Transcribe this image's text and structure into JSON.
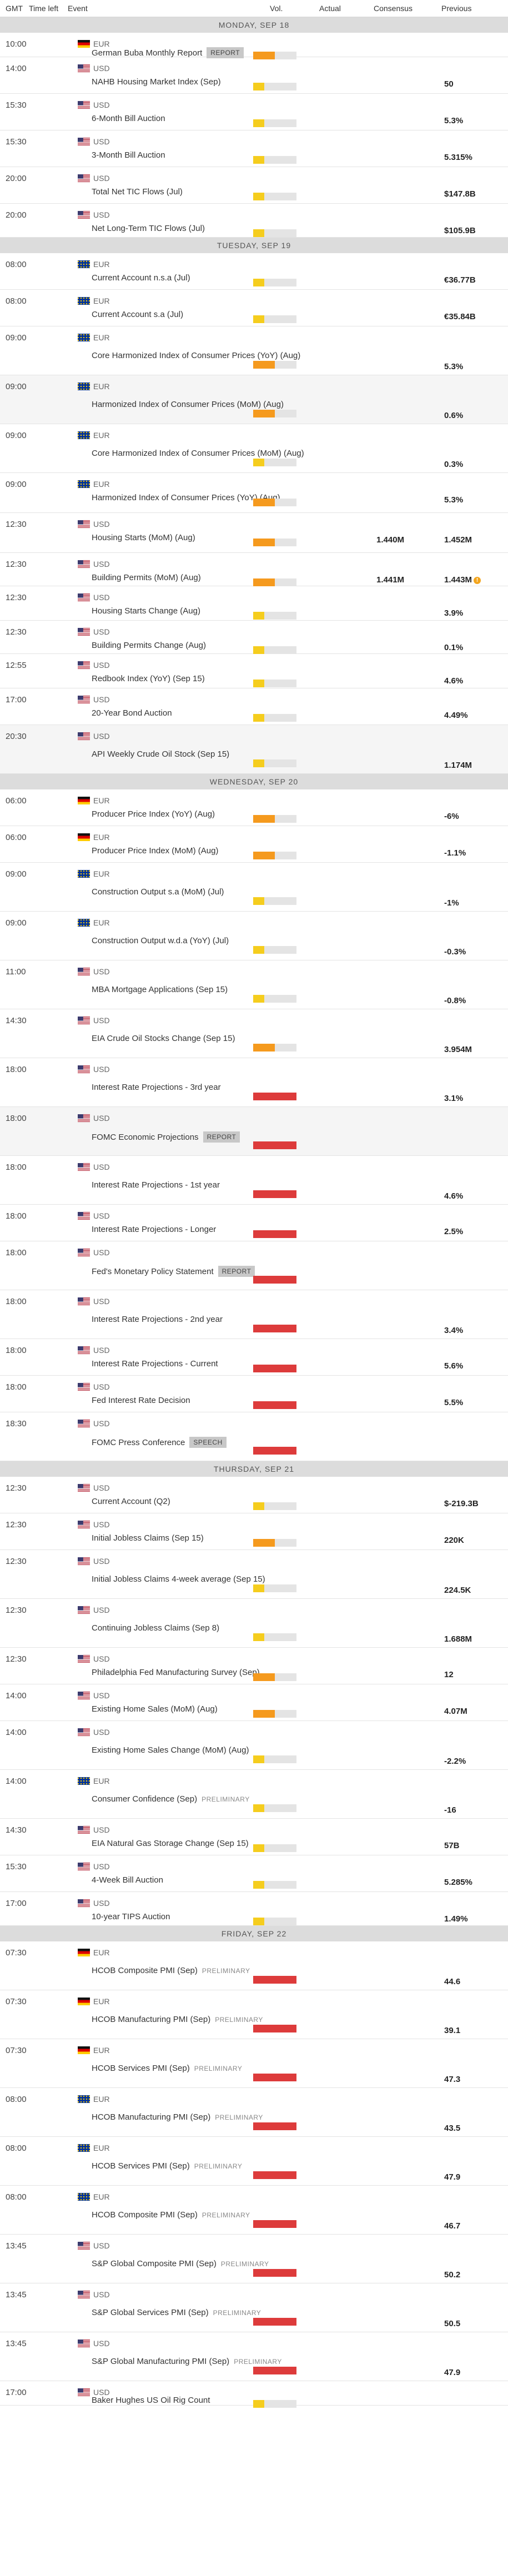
{
  "headers": {
    "gmt": "GMT",
    "time_left": "Time left",
    "event": "Event",
    "vol": "Vol.",
    "actual": "Actual",
    "consensus": "Consensus",
    "previous": "Previous"
  },
  "colors": {
    "low": "#f5cd1e",
    "medium": "#f59a1e",
    "high": "#dd3b3b",
    "day_band": "#dcdcdc"
  },
  "days": [
    {
      "label": "MONDAY, SEP 18",
      "events": [
        {
          "time": "10:00",
          "country": "de",
          "cur": "EUR",
          "name": "German Buba Monthly Report",
          "tag": "REPORT",
          "vol": "medium",
          "prev": "",
          "h": 44
        },
        {
          "time": "14:00",
          "country": "us",
          "cur": "USD",
          "name": "NAHB Housing Market Index (Sep)",
          "vol": "low",
          "prev": "50",
          "h": 66
        },
        {
          "time": "15:30",
          "country": "us",
          "cur": "USD",
          "name": "6-Month Bill Auction",
          "vol": "low",
          "prev": "5.3%",
          "h": 66
        },
        {
          "time": "15:30",
          "country": "us",
          "cur": "USD",
          "name": "3-Month Bill Auction",
          "vol": "low",
          "prev": "5.315%",
          "h": 66
        },
        {
          "time": "20:00",
          "country": "us",
          "cur": "USD",
          "name": "Total Net TIC Flows (Jul)",
          "vol": "low",
          "prev": "$147.8B",
          "h": 66
        },
        {
          "time": "20:00",
          "country": "us",
          "cur": "USD",
          "name": "Net Long-Term TIC Flows (Jul)",
          "vol": "low",
          "prev": "$105.9B",
          "h": 61
        }
      ]
    },
    {
      "label": "TUESDAY, SEP 19",
      "events": [
        {
          "time": "08:00",
          "country": "eu",
          "cur": "EUR",
          "name": "Current Account n.s.a (Jul)",
          "vol": "low",
          "prev": "€36.77B",
          "h": 66
        },
        {
          "time": "08:00",
          "country": "eu",
          "cur": "EUR",
          "name": "Current Account s.a (Jul)",
          "vol": "low",
          "prev": "€35.84B",
          "h": 66
        },
        {
          "time": "09:00",
          "country": "eu",
          "cur": "EUR",
          "name": "Core Harmonized Index of Consumer Prices (YoY) (Aug)",
          "vol": "medium",
          "prev": "5.3%",
          "h": 88
        },
        {
          "time": "09:00",
          "country": "eu",
          "cur": "EUR",
          "name": "Harmonized Index of Consumer Prices (MoM) (Aug)",
          "vol": "medium",
          "prev": "0.6%",
          "h": 88,
          "alt": true
        },
        {
          "time": "09:00",
          "country": "eu",
          "cur": "EUR",
          "name": "Core Harmonized Index of Consumer Prices (MoM) (Aug)",
          "vol": "low",
          "prev": "0.3%",
          "h": 88
        },
        {
          "time": "09:00",
          "country": "eu",
          "cur": "EUR",
          "name": "Harmonized Index of Consumer Prices (YoY) (Aug)",
          "vol": "medium",
          "prev": "5.3%",
          "h": 72
        },
        {
          "time": "12:30",
          "country": "us",
          "cur": "USD",
          "name": "Housing Starts (MoM) (Aug)",
          "vol": "medium",
          "cons": "1.440M",
          "prev": "1.452M",
          "h": 72
        },
        {
          "time": "12:30",
          "country": "us",
          "cur": "USD",
          "name": "Building Permits (MoM) (Aug)",
          "vol": "medium",
          "cons": "1.441M",
          "prev": "1.443M",
          "warn": true,
          "h": 60
        },
        {
          "time": "12:30",
          "country": "us",
          "cur": "USD",
          "name": "Housing Starts Change (Aug)",
          "vol": "low",
          "prev": "3.9%",
          "h": 62
        },
        {
          "time": "12:30",
          "country": "us",
          "cur": "USD",
          "name": "Building Permits Change (Aug)",
          "vol": "low",
          "prev": "0.1%",
          "h": 60
        },
        {
          "time": "12:55",
          "country": "us",
          "cur": "USD",
          "name": "Redbook Index (YoY) (Sep 15)",
          "vol": "low",
          "prev": "4.6%",
          "h": 62
        },
        {
          "time": "17:00",
          "country": "us",
          "cur": "USD",
          "name": "20-Year Bond Auction",
          "vol": "low",
          "prev": "4.49%",
          "h": 66
        },
        {
          "time": "20:30",
          "country": "us",
          "cur": "USD",
          "name": "API Weekly Crude Oil Stock (Sep 15)",
          "vol": "low",
          "prev": "1.174M",
          "h": 88,
          "alt": true
        }
      ]
    },
    {
      "label": "WEDNESDAY, SEP 20",
      "events": [
        {
          "time": "06:00",
          "country": "de",
          "cur": "EUR",
          "name": "Producer Price Index (YoY) (Aug)",
          "vol": "medium",
          "prev": "-6%",
          "h": 66
        },
        {
          "time": "06:00",
          "country": "de",
          "cur": "EUR",
          "name": "Producer Price Index (MoM) (Aug)",
          "vol": "medium",
          "prev": "-1.1%",
          "h": 66
        },
        {
          "time": "09:00",
          "country": "eu",
          "cur": "EUR",
          "name": "Construction Output s.a (MoM) (Jul)",
          "vol": "low",
          "prev": "-1%",
          "h": 88
        },
        {
          "time": "09:00",
          "country": "eu",
          "cur": "EUR",
          "name": "Construction Output w.d.a (YoY) (Jul)",
          "vol": "low",
          "prev": "-0.3%",
          "h": 88
        },
        {
          "time": "11:00",
          "country": "us",
          "cur": "USD",
          "name": "MBA Mortgage Applications (Sep 15)",
          "vol": "low",
          "prev": "-0.8%",
          "h": 88
        },
        {
          "time": "14:30",
          "country": "us",
          "cur": "USD",
          "name": "EIA Crude Oil Stocks Change (Sep 15)",
          "vol": "medium",
          "prev": "3.954M",
          "h": 88
        },
        {
          "time": "18:00",
          "country": "us",
          "cur": "USD",
          "name": "Interest Rate Projections - 3rd year",
          "vol": "high",
          "prev": "3.1%",
          "h": 88
        },
        {
          "time": "18:00",
          "country": "us",
          "cur": "USD",
          "name": "FOMC Economic Projections",
          "tag": "REPORT",
          "vol": "high",
          "prev": "",
          "h": 88,
          "alt": true
        },
        {
          "time": "18:00",
          "country": "us",
          "cur": "USD",
          "name": "Interest Rate Projections - 1st year",
          "vol": "high",
          "prev": "4.6%",
          "h": 88
        },
        {
          "time": "18:00",
          "country": "us",
          "cur": "USD",
          "name": "Interest Rate Projections - Longer",
          "vol": "high",
          "prev": "2.5%",
          "h": 66
        },
        {
          "time": "18:00",
          "country": "us",
          "cur": "USD",
          "name": "Fed's Monetary Policy Statement",
          "tag": "REPORT",
          "vol": "high",
          "prev": "",
          "h": 88
        },
        {
          "time": "18:00",
          "country": "us",
          "cur": "USD",
          "name": "Interest Rate Projections - 2nd year",
          "vol": "high",
          "prev": "3.4%",
          "h": 88
        },
        {
          "time": "18:00",
          "country": "us",
          "cur": "USD",
          "name": "Interest Rate Projections - Current",
          "vol": "high",
          "prev": "5.6%",
          "h": 66
        },
        {
          "time": "18:00",
          "country": "us",
          "cur": "USD",
          "name": "Fed Interest Rate Decision",
          "vol": "high",
          "prev": "5.5%",
          "h": 66
        },
        {
          "time": "18:30",
          "country": "us",
          "cur": "USD",
          "name": "FOMC Press Conference",
          "tag": "SPEECH",
          "vol": "high",
          "prev": "",
          "h": 88
        }
      ]
    },
    {
      "label": "THURSDAY, SEP 21",
      "events": [
        {
          "time": "12:30",
          "country": "us",
          "cur": "USD",
          "name": "Current Account (Q2)",
          "vol": "low",
          "prev": "$-219.3B",
          "h": 66
        },
        {
          "time": "12:30",
          "country": "us",
          "cur": "USD",
          "name": "Initial Jobless Claims (Sep 15)",
          "vol": "medium",
          "prev": "220K",
          "h": 66
        },
        {
          "time": "12:30",
          "country": "us",
          "cur": "USD",
          "name": "Initial Jobless Claims 4-week average (Sep 15)",
          "vol": "low",
          "prev": "224.5K",
          "h": 88
        },
        {
          "time": "12:30",
          "country": "us",
          "cur": "USD",
          "name": "Continuing Jobless Claims (Sep 8)",
          "vol": "low",
          "prev": "1.688M",
          "h": 88
        },
        {
          "time": "12:30",
          "country": "us",
          "cur": "USD",
          "name": "Philadelphia Fed Manufacturing Survey (Sep)",
          "vol": "medium",
          "prev": "12",
          "h": 66
        },
        {
          "time": "14:00",
          "country": "us",
          "cur": "USD",
          "name": "Existing Home Sales (MoM) (Aug)",
          "vol": "medium",
          "prev": "4.07M",
          "h": 66
        },
        {
          "time": "14:00",
          "country": "us",
          "cur": "USD",
          "name": "Existing Home Sales Change (MoM) (Aug)",
          "vol": "low",
          "prev": "-2.2%",
          "h": 88
        },
        {
          "time": "14:00",
          "country": "eu",
          "cur": "EUR",
          "name": "Consumer Confidence (Sep)",
          "tag": "PRELIMINARY",
          "vol": "low",
          "prev": "-16",
          "h": 88
        },
        {
          "time": "14:30",
          "country": "us",
          "cur": "USD",
          "name": "EIA Natural Gas Storage Change (Sep 15)",
          "vol": "low",
          "prev": "57B",
          "h": 66
        },
        {
          "time": "15:30",
          "country": "us",
          "cur": "USD",
          "name": "4-Week Bill Auction",
          "vol": "low",
          "prev": "5.285%",
          "h": 66
        },
        {
          "time": "17:00",
          "country": "us",
          "cur": "USD",
          "name": "10-year TIPS Auction",
          "vol": "low",
          "prev": "1.49%",
          "h": 61
        }
      ]
    },
    {
      "label": "FRIDAY, SEP 22",
      "events": [
        {
          "time": "07:30",
          "country": "de",
          "cur": "EUR",
          "name": "HCOB Composite PMI (Sep)",
          "tag": "PRELIMINARY",
          "vol": "high",
          "prev": "44.6",
          "h": 88
        },
        {
          "time": "07:30",
          "country": "de",
          "cur": "EUR",
          "name": "HCOB Manufacturing PMI (Sep)",
          "tag": "PRELIMINARY",
          "vol": "high",
          "prev": "39.1",
          "h": 88
        },
        {
          "time": "07:30",
          "country": "de",
          "cur": "EUR",
          "name": "HCOB Services PMI (Sep)",
          "tag": "PRELIMINARY",
          "vol": "high",
          "prev": "47.3",
          "h": 88
        },
        {
          "time": "08:00",
          "country": "eu",
          "cur": "EUR",
          "name": "HCOB Manufacturing PMI (Sep)",
          "tag": "PRELIMINARY",
          "vol": "high",
          "prev": "43.5",
          "h": 88
        },
        {
          "time": "08:00",
          "country": "eu",
          "cur": "EUR",
          "name": "HCOB Services PMI (Sep)",
          "tag": "PRELIMINARY",
          "vol": "high",
          "prev": "47.9",
          "h": 88
        },
        {
          "time": "08:00",
          "country": "eu",
          "cur": "EUR",
          "name": "HCOB Composite PMI (Sep)",
          "tag": "PRELIMINARY",
          "vol": "high",
          "prev": "46.7",
          "h": 88
        },
        {
          "time": "13:45",
          "country": "us",
          "cur": "USD",
          "name": "S&P Global Composite PMI (Sep)",
          "tag": "PRELIMINARY",
          "vol": "high",
          "prev": "50.2",
          "h": 88
        },
        {
          "time": "13:45",
          "country": "us",
          "cur": "USD",
          "name": "S&P Global Services PMI (Sep)",
          "tag": "PRELIMINARY",
          "vol": "high",
          "prev": "50.5",
          "h": 88
        },
        {
          "time": "13:45",
          "country": "us",
          "cur": "USD",
          "name": "S&P Global Manufacturing PMI (Sep)",
          "tag": "PRELIMINARY",
          "vol": "high",
          "prev": "47.9",
          "h": 88
        },
        {
          "time": "17:00",
          "country": "us",
          "cur": "USD",
          "name": "Baker Hughes US Oil Rig Count",
          "vol": "low",
          "prev": "",
          "h": 44
        }
      ]
    }
  ]
}
